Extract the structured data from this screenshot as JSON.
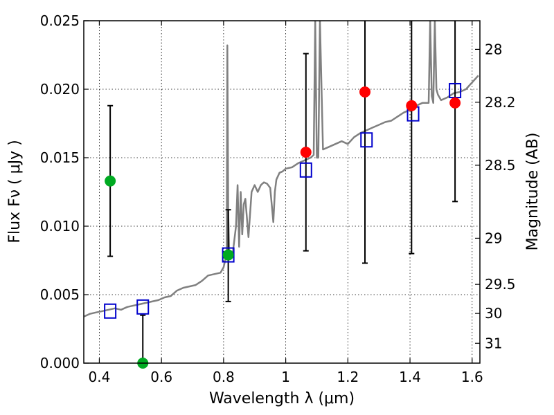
{
  "chart_data": {
    "type": "scatter",
    "title": "",
    "xlabel": "Wavelength  λ (μm)",
    "ylabel": "Flux  Fν  ( μJy )",
    "y2label": "Magnitude (AB)",
    "xlim": [
      0.35,
      1.625
    ],
    "ylim": [
      0,
      0.025
    ],
    "grid": true,
    "x_ticks": [
      {
        "value": 0.4,
        "label": "0.4"
      },
      {
        "value": 0.6,
        "label": "0.6"
      },
      {
        "value": 0.8,
        "label": "0.8"
      },
      {
        "value": 1.0,
        "label": "1"
      },
      {
        "value": 1.2,
        "label": "1.2"
      },
      {
        "value": 1.4,
        "label": "1.4"
      },
      {
        "value": 1.6,
        "label": "1.6"
      }
    ],
    "y_ticks": [
      {
        "value": 0.0,
        "label": "0.000"
      },
      {
        "value": 0.005,
        "label": "0.005"
      },
      {
        "value": 0.01,
        "label": "0.010"
      },
      {
        "value": 0.015,
        "label": "0.015"
      },
      {
        "value": 0.02,
        "label": "0.020"
      },
      {
        "value": 0.025,
        "label": "0.025"
      }
    ],
    "mag_ticks": [
      {
        "label": "28",
        "flux": 0.02291
      },
      {
        "label": "28.2",
        "flux": 0.01905
      },
      {
        "label": "28.5",
        "flux": 0.01445
      },
      {
        "label": "29",
        "flux": 0.00912
      },
      {
        "label": "29.5",
        "flux": 0.00575
      },
      {
        "label": "30",
        "flux": 0.00363
      },
      {
        "label": "31",
        "flux": 0.00145
      }
    ],
    "series": [
      {
        "kind": "model_spectrum",
        "color": "#808080",
        "x": [
          0.35,
          0.37,
          0.39,
          0.41,
          0.43,
          0.45,
          0.47,
          0.49,
          0.51,
          0.53,
          0.55,
          0.57,
          0.59,
          0.61,
          0.63,
          0.65,
          0.67,
          0.69,
          0.71,
          0.73,
          0.75,
          0.77,
          0.79,
          0.8,
          0.81,
          0.812,
          0.815,
          0.818,
          0.82,
          0.83,
          0.84,
          0.845,
          0.85,
          0.855,
          0.86,
          0.865,
          0.87,
          0.88,
          0.89,
          0.9,
          0.91,
          0.92,
          0.93,
          0.94,
          0.95,
          0.96,
          0.965,
          0.97,
          0.98,
          0.99,
          1.0,
          1.02,
          1.04,
          1.06,
          1.08,
          1.09,
          1.095,
          1.1,
          1.105,
          1.11,
          1.12,
          1.14,
          1.16,
          1.18,
          1.2,
          1.22,
          1.24,
          1.26,
          1.28,
          1.3,
          1.32,
          1.34,
          1.36,
          1.38,
          1.4,
          1.42,
          1.44,
          1.46,
          1.465,
          1.47,
          1.475,
          1.48,
          1.485,
          1.49,
          1.5,
          1.52,
          1.54,
          1.56,
          1.58,
          1.6,
          1.62
        ],
        "y": [
          0.0034,
          0.0036,
          0.0037,
          0.0038,
          0.0039,
          0.004,
          0.0039,
          0.0041,
          0.0042,
          0.0043,
          0.0044,
          0.0045,
          0.0046,
          0.0048,
          0.0049,
          0.0053,
          0.0055,
          0.0056,
          0.0057,
          0.006,
          0.0064,
          0.0065,
          0.0066,
          0.007,
          0.008,
          0.0232,
          0.011,
          0.008,
          0.0078,
          0.0081,
          0.01,
          0.013,
          0.0085,
          0.0125,
          0.0094,
          0.0116,
          0.012,
          0.0092,
          0.0125,
          0.013,
          0.0125,
          0.013,
          0.0132,
          0.0131,
          0.0128,
          0.0103,
          0.0125,
          0.0134,
          0.0139,
          0.014,
          0.0142,
          0.0143,
          0.0146,
          0.0148,
          0.015,
          0.0152,
          0.025,
          0.015,
          0.015,
          0.025,
          0.0156,
          0.0158,
          0.016,
          0.0162,
          0.016,
          0.0165,
          0.0168,
          0.017,
          0.0172,
          0.0174,
          0.0176,
          0.0177,
          0.018,
          0.0183,
          0.0185,
          0.0188,
          0.019,
          0.019,
          0.025,
          0.0195,
          0.019,
          0.025,
          0.02,
          0.0196,
          0.0192,
          0.0194,
          0.0197,
          0.0198,
          0.02,
          0.0205,
          0.021
        ]
      },
      {
        "kind": "model_photometry",
        "marker": "square",
        "color": "#0000cc",
        "x": [
          0.435,
          0.54,
          0.815,
          1.065,
          1.26,
          1.41,
          1.545
        ],
        "y": [
          0.0038,
          0.0041,
          0.0079,
          0.0141,
          0.0163,
          0.0182,
          0.0199
        ]
      },
      {
        "kind": "detections",
        "marker": "circle",
        "color": "#ff0000",
        "x": [
          1.065,
          1.255,
          1.405,
          1.545
        ],
        "y": [
          0.0154,
          0.0198,
          0.0188,
          0.019
        ],
        "err_low": [
          0.0082,
          0.0073,
          0.008,
          0.0118
        ],
        "err_high": [
          0.0226,
          0.025,
          0.025,
          0.025
        ]
      },
      {
        "kind": "low_significance",
        "marker": "circle",
        "color": "#00aa22",
        "x": [
          0.435,
          0.54,
          0.815
        ],
        "y": [
          0.0133,
          0.0,
          0.0079
        ],
        "err_low": [
          0.0078,
          0.0,
          0.0045
        ],
        "err_high": [
          0.0188,
          0.0035,
          0.0112
        ]
      }
    ]
  }
}
